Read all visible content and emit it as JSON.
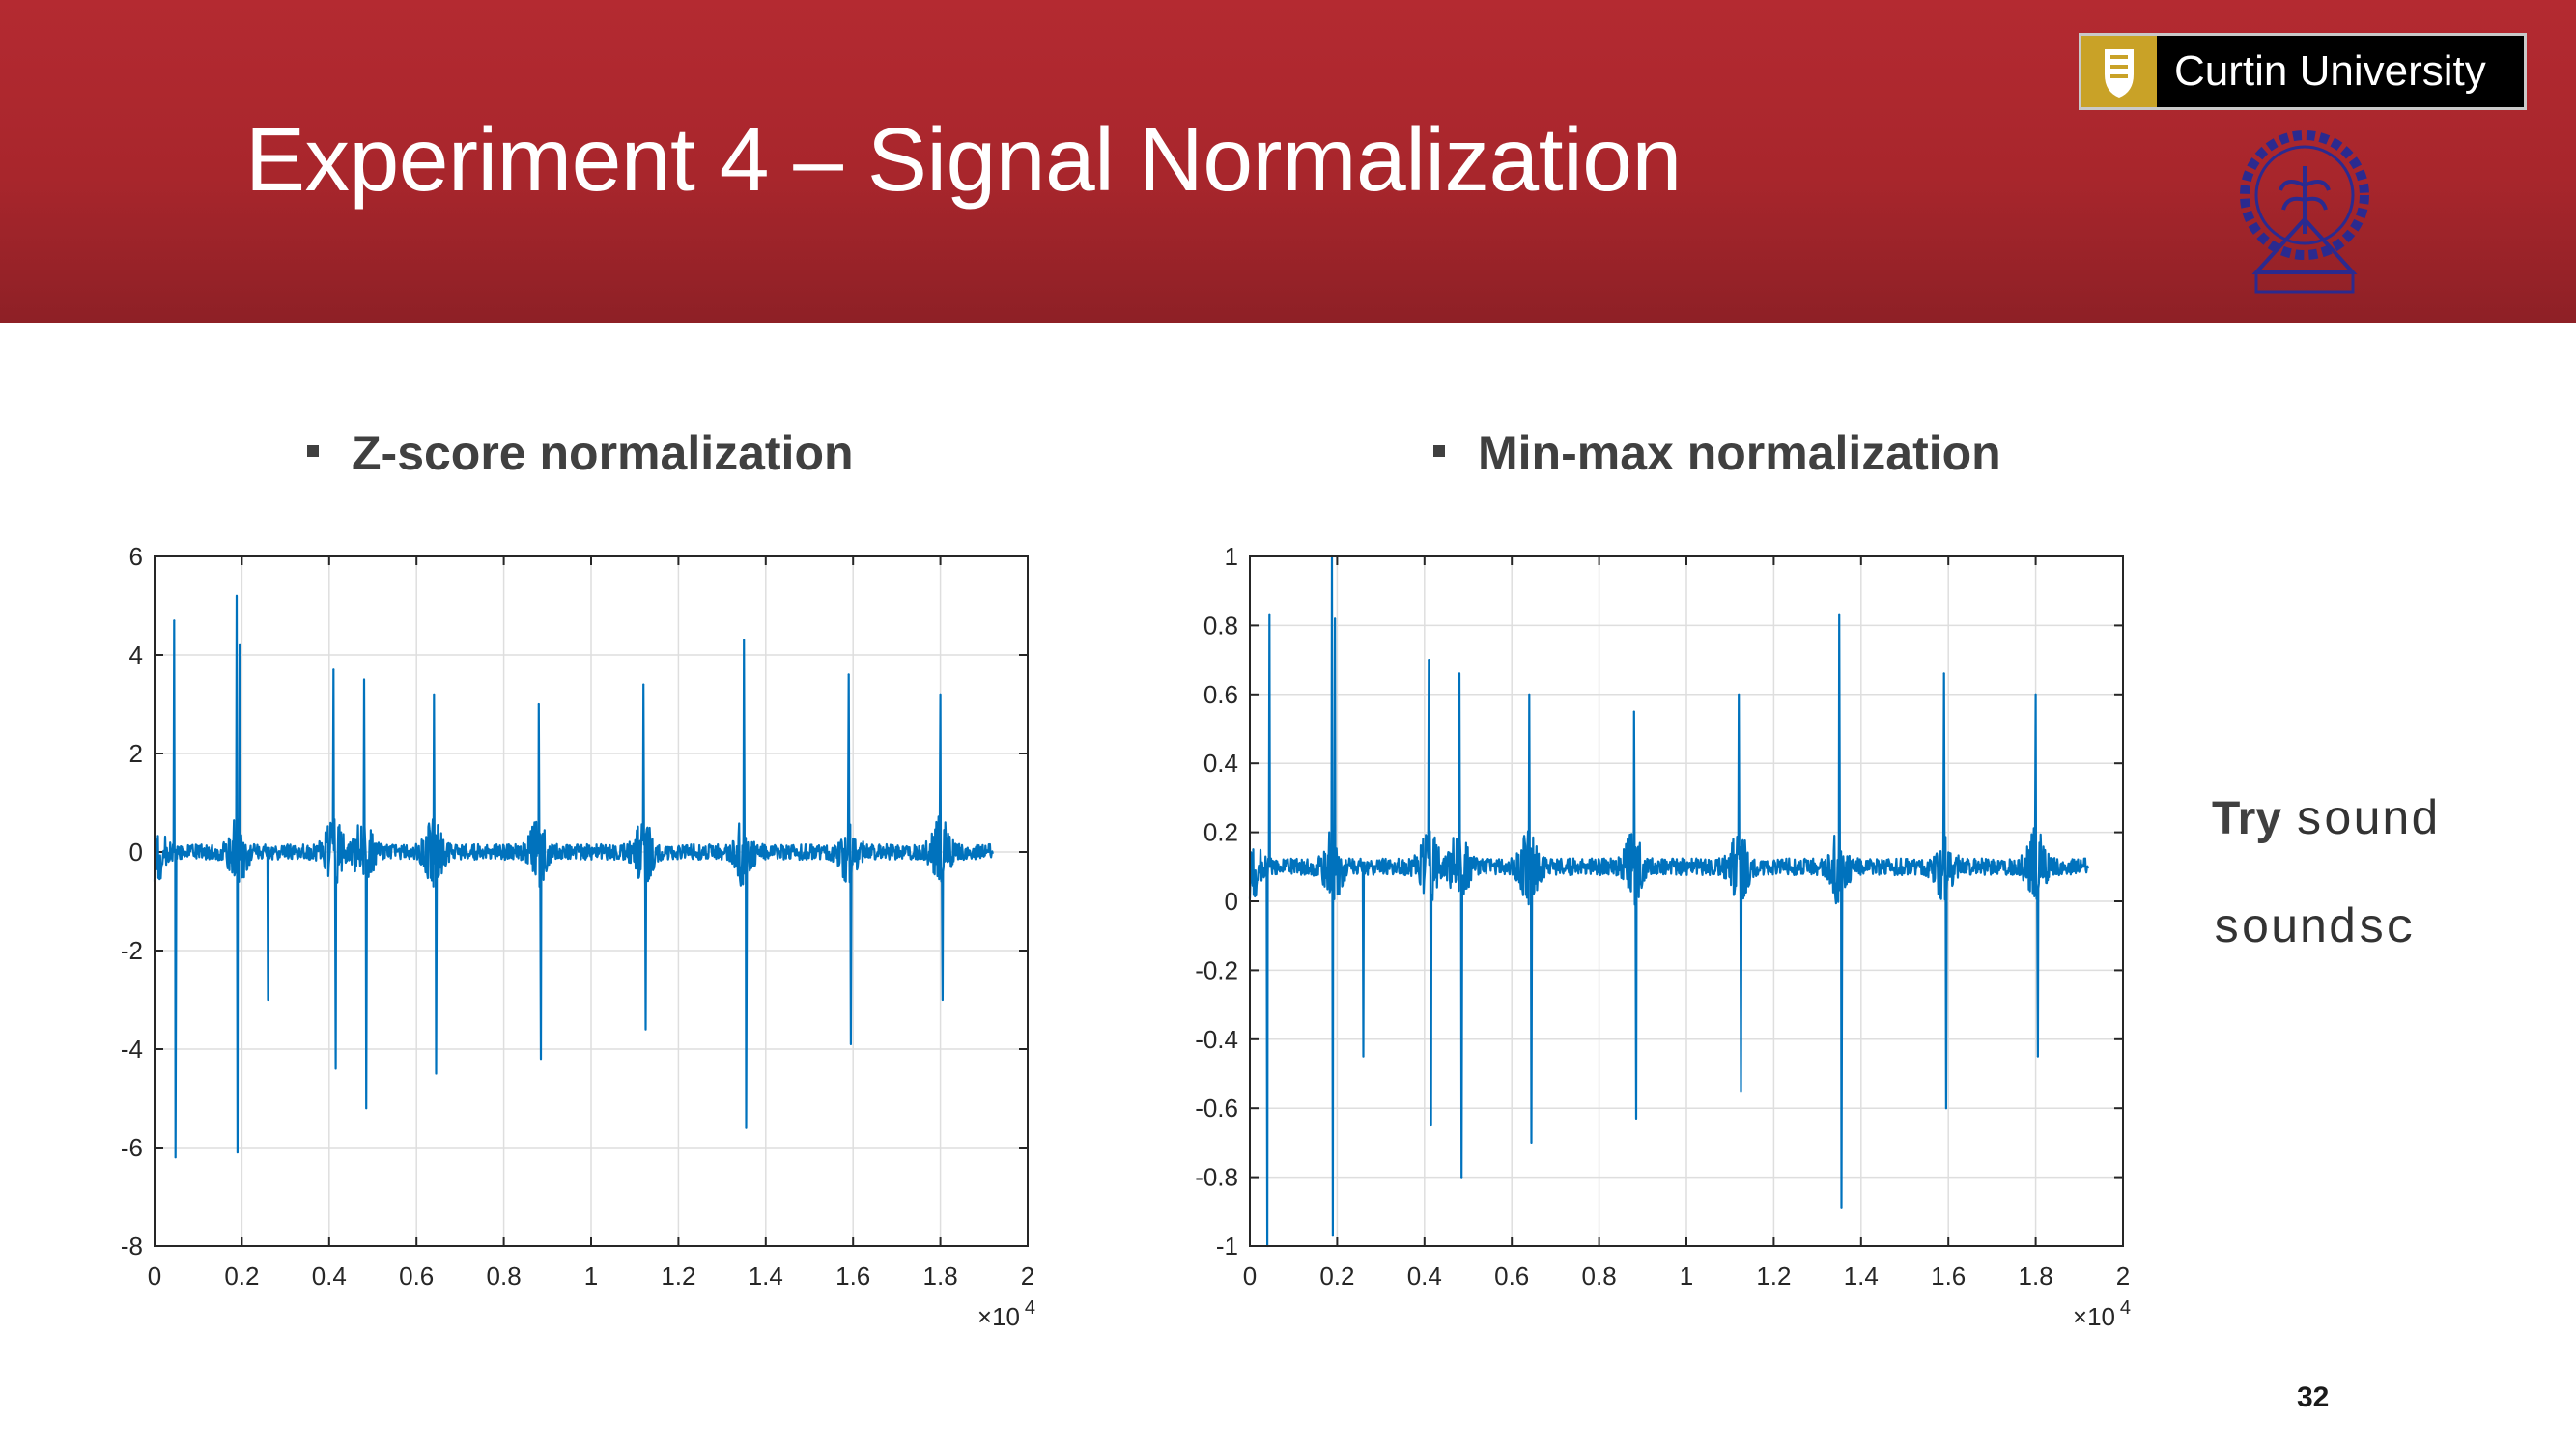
{
  "slide": {
    "title": "Experiment 4 – Signal Normalization",
    "page_number": "32",
    "colors": {
      "header": "#b42a31",
      "signal": "#0072bd",
      "text": "#404040"
    }
  },
  "logo": {
    "name": "Curtin University",
    "icon": "curtin-crest-icon"
  },
  "seal": {
    "icon": "iit-kharagpur-seal-icon"
  },
  "bullets": {
    "left": "Z-score normalization",
    "right": "Min-max normalization"
  },
  "note": {
    "try_label": "Try",
    "cmd1": "sound",
    "cmd2": "soundsc"
  },
  "chart_data": [
    {
      "type": "line",
      "x_range": [
        0,
        19200
      ],
      "xlim": [
        0,
        20000
      ],
      "ylim": [
        -8,
        6
      ],
      "xticks": [
        "0",
        "0.2",
        "0.4",
        "0.6",
        "0.8",
        "1",
        "1.2",
        "1.4",
        "1.6",
        "1.8",
        "2"
      ],
      "yticks": [
        "6",
        "4",
        "2",
        "0",
        "-2",
        "-4",
        "-6",
        "-8"
      ],
      "x_exponent": "×10",
      "x_exponent_power": "4",
      "grid": true,
      "baseline": 0.0,
      "noise": 0.45,
      "series_color": "#0072bd",
      "peaks": [
        {
          "x": 450,
          "y": 4.7
        },
        {
          "x": 480,
          "y": -6.2
        },
        {
          "x": 1880,
          "y": 5.2
        },
        {
          "x": 1950,
          "y": 4.2
        },
        {
          "x": 1900,
          "y": -6.1
        },
        {
          "x": 2600,
          "y": -3.0
        },
        {
          "x": 4100,
          "y": 3.7
        },
        {
          "x": 4150,
          "y": -4.4
        },
        {
          "x": 4800,
          "y": 3.5
        },
        {
          "x": 4850,
          "y": -5.2
        },
        {
          "x": 6400,
          "y": 3.2
        },
        {
          "x": 6450,
          "y": -4.5
        },
        {
          "x": 8800,
          "y": 3.0
        },
        {
          "x": 8850,
          "y": -4.2
        },
        {
          "x": 11200,
          "y": 3.4
        },
        {
          "x": 11250,
          "y": -3.6
        },
        {
          "x": 13500,
          "y": 4.3
        },
        {
          "x": 13550,
          "y": -5.6
        },
        {
          "x": 15900,
          "y": 3.6
        },
        {
          "x": 15950,
          "y": -3.9
        },
        {
          "x": 18000,
          "y": 3.2
        },
        {
          "x": 18050,
          "y": -3.0
        }
      ]
    },
    {
      "type": "line",
      "x_range": [
        0,
        19200
      ],
      "xlim": [
        0,
        20000
      ],
      "ylim": [
        -1,
        1
      ],
      "xticks": [
        "0",
        "0.2",
        "0.4",
        "0.6",
        "0.8",
        "1",
        "1.2",
        "1.4",
        "1.6",
        "1.8",
        "2"
      ],
      "yticks": [
        "1",
        "0.8",
        "0.6",
        "0.4",
        "0.2",
        "0",
        "-0.2",
        "-0.4",
        "-0.6",
        "-0.8",
        "-1"
      ],
      "x_exponent": "×10",
      "x_exponent_power": "4",
      "grid": true,
      "baseline": 0.1,
      "noise": 0.07,
      "series_color": "#0072bd",
      "peaks": [
        {
          "x": 450,
          "y": 0.83
        },
        {
          "x": 400,
          "y": -1.0
        },
        {
          "x": 1880,
          "y": 1.0
        },
        {
          "x": 1950,
          "y": 0.82
        },
        {
          "x": 1900,
          "y": -0.97
        },
        {
          "x": 2600,
          "y": -0.45
        },
        {
          "x": 4100,
          "y": 0.7
        },
        {
          "x": 4150,
          "y": -0.65
        },
        {
          "x": 4800,
          "y": 0.66
        },
        {
          "x": 4850,
          "y": -0.8
        },
        {
          "x": 6400,
          "y": 0.6
        },
        {
          "x": 6450,
          "y": -0.7
        },
        {
          "x": 8800,
          "y": 0.55
        },
        {
          "x": 8850,
          "y": -0.63
        },
        {
          "x": 11200,
          "y": 0.6
        },
        {
          "x": 11250,
          "y": -0.55
        },
        {
          "x": 13500,
          "y": 0.83
        },
        {
          "x": 13550,
          "y": -0.89
        },
        {
          "x": 15900,
          "y": 0.66
        },
        {
          "x": 15950,
          "y": -0.6
        },
        {
          "x": 18000,
          "y": 0.6
        },
        {
          "x": 18050,
          "y": -0.45
        }
      ]
    }
  ]
}
